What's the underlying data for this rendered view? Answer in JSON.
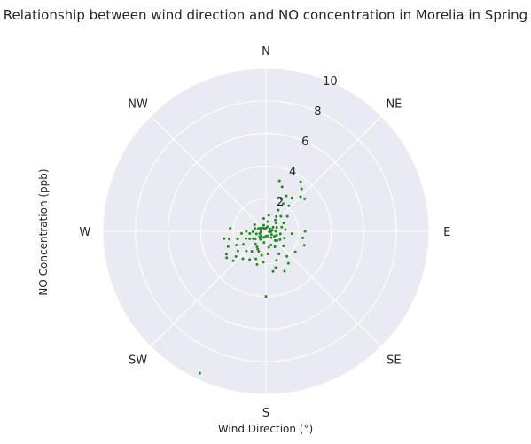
{
  "chart_data": {
    "type": "scatter",
    "projection": "polar",
    "title": "Relationship between wind direction and NO concentration in Morelia in Spring",
    "xlabel": "Wind Direction (°)",
    "ylabel": "NO Concentration (ppb)",
    "theta_zero": "N",
    "theta_direction": "clockwise",
    "rlim": [
      0,
      10
    ],
    "r_ticks": [
      2,
      4,
      6,
      8,
      10
    ],
    "r_tick_labels": [
      "2",
      "4",
      "6",
      "8",
      "10"
    ],
    "theta_ticks": [
      0,
      45,
      90,
      135,
      180,
      225,
      270,
      315
    ],
    "theta_tick_labels": [
      "N",
      "NE",
      "E",
      "SE",
      "S",
      "SW",
      "W",
      "NW"
    ],
    "grid": true,
    "background": "#eaeaf2",
    "grid_color": "#ffffff",
    "point_color": "#228b22",
    "points": [
      {
        "theta": 15,
        "r": 3.2
      },
      {
        "theta": 20,
        "r": 2.9
      },
      {
        "theta": 35,
        "r": 3.7
      },
      {
        "theta": 40,
        "r": 3.4
      },
      {
        "theta": 30,
        "r": 2.5
      },
      {
        "theta": 38,
        "r": 2.6
      },
      {
        "theta": 45,
        "r": 3.0
      },
      {
        "theta": 50,
        "r": 3.1
      },
      {
        "theta": 25,
        "r": 2.2
      },
      {
        "theta": 32,
        "r": 2.0
      },
      {
        "theta": 42,
        "r": 2.1
      },
      {
        "theta": 30,
        "r": 1.5
      },
      {
        "theta": 45,
        "r": 1.3
      },
      {
        "theta": 35,
        "r": 1.1
      },
      {
        "theta": 40,
        "r": 0.9
      },
      {
        "theta": 50,
        "r": 0.8
      },
      {
        "theta": 10,
        "r": 0.6
      },
      {
        "theta": 90,
        "r": 2.4
      },
      {
        "theta": 100,
        "r": 2.3
      },
      {
        "theta": 95,
        "r": 1.6
      },
      {
        "theta": 110,
        "r": 2.5
      },
      {
        "theta": 80,
        "r": 0.4
      },
      {
        "theta": 100,
        "r": 0.2
      },
      {
        "theta": 120,
        "r": 0.4
      },
      {
        "theta": 140,
        "r": 0.5
      },
      {
        "theta": 160,
        "r": 0.3
      },
      {
        "theta": 60,
        "r": 0.5
      },
      {
        "theta": 20,
        "r": 0.3
      },
      {
        "theta": 0,
        "r": 0.2
      },
      {
        "theta": 330,
        "r": 0.2
      },
      {
        "theta": 280,
        "r": 0.3
      },
      {
        "theta": 290,
        "r": 0.5
      },
      {
        "theta": 300,
        "r": 0.8
      },
      {
        "theta": 315,
        "r": 0.3
      },
      {
        "theta": 250,
        "r": 0.4
      },
      {
        "theta": 230,
        "r": 0.5
      },
      {
        "theta": 215,
        "r": 0.6
      },
      {
        "theta": 200,
        "r": 0.4
      },
      {
        "theta": 180,
        "r": 0.3
      },
      {
        "theta": 190,
        "r": 0.7
      },
      {
        "theta": 120,
        "r": 1.0
      },
      {
        "theta": 130,
        "r": 1.4
      },
      {
        "theta": 150,
        "r": 1.6
      },
      {
        "theta": 140,
        "r": 2.0
      },
      {
        "theta": 125,
        "r": 2.2
      },
      {
        "theta": 145,
        "r": 2.4
      },
      {
        "theta": 160,
        "r": 1.9
      },
      {
        "theta": 165,
        "r": 2.3
      },
      {
        "theta": 155,
        "r": 2.7
      },
      {
        "theta": 170,
        "r": 2.5
      },
      {
        "theta": 180,
        "r": 4.0
      },
      {
        "theta": 190,
        "r": 1.5
      },
      {
        "theta": 200,
        "r": 1.8
      },
      {
        "theta": 205,
        "r": 1.2
      },
      {
        "theta": 210,
        "r": 2.0
      },
      {
        "theta": 215,
        "r": 1.5
      },
      {
        "theta": 220,
        "r": 1.0
      },
      {
        "theta": 225,
        "r": 1.7
      },
      {
        "theta": 230,
        "r": 2.4
      },
      {
        "theta": 235,
        "r": 2.1
      },
      {
        "theta": 240,
        "r": 1.6
      },
      {
        "theta": 240,
        "r": 2.8
      },
      {
        "theta": 245,
        "r": 2.0
      },
      {
        "theta": 248,
        "r": 2.5
      },
      {
        "theta": 250,
        "r": 1.3
      },
      {
        "theta": 255,
        "r": 1.8
      },
      {
        "theta": 258,
        "r": 2.3
      },
      {
        "theta": 262,
        "r": 1.0
      },
      {
        "theta": 265,
        "r": 1.5
      },
      {
        "theta": 268,
        "r": 0.8
      },
      {
        "theta": 270,
        "r": 1.2
      },
      {
        "theta": 275,
        "r": 2.2
      },
      {
        "theta": 260,
        "r": 2.6
      },
      {
        "theta": 236,
        "r": 2.9
      },
      {
        "theta": 228,
        "r": 2.7
      },
      {
        "theta": 195,
        "r": 2.1
      },
      {
        "theta": 185,
        "r": 1.9
      },
      {
        "theta": 175,
        "r": 1.4
      },
      {
        "theta": 170,
        "r": 1.0
      },
      {
        "theta": 160,
        "r": 0.9
      },
      {
        "theta": 135,
        "r": 0.8
      },
      {
        "theta": 110,
        "r": 0.7
      },
      {
        "theta": 90,
        "r": 0.6
      },
      {
        "theta": 70,
        "r": 0.7
      },
      {
        "theta": 55,
        "r": 1.6
      },
      {
        "theta": 65,
        "r": 1.2
      },
      {
        "theta": 75,
        "r": 1.0
      },
      {
        "theta": 85,
        "r": 1.2
      },
      {
        "theta": 110,
        "r": 1.2
      },
      {
        "theta": 205,
        "r": 9.6
      },
      {
        "theta": 300,
        "r": 0.4
      },
      {
        "theta": 340,
        "r": 0.4
      },
      {
        "theta": 10,
        "r": 1.0
      },
      {
        "theta": 350,
        "r": 0.8
      },
      {
        "theta": 240,
        "r": 0.9
      },
      {
        "theta": 210,
        "r": 1.1
      },
      {
        "theta": 200,
        "r": 1.3
      },
      {
        "theta": 150,
        "r": 1.1
      },
      {
        "theta": 130,
        "r": 0.9
      },
      {
        "theta": 100,
        "r": 0.9
      },
      {
        "theta": 220,
        "r": 2.2
      },
      {
        "theta": 245,
        "r": 1.1
      },
      {
        "theta": 255,
        "r": 0.6
      },
      {
        "theta": 235,
        "r": 0.8
      },
      {
        "theta": 225,
        "r": 0.4
      },
      {
        "theta": 265,
        "r": 0.3
      },
      {
        "theta": 285,
        "r": 0.7
      },
      {
        "theta": 120,
        "r": 0.6
      },
      {
        "theta": 95,
        "r": 0.3
      },
      {
        "theta": 60,
        "r": 0.3
      }
    ]
  }
}
